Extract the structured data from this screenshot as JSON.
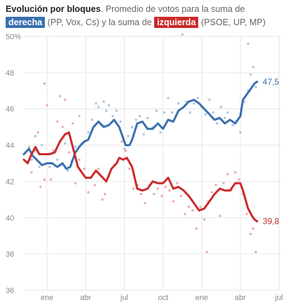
{
  "header": {
    "title": "Evolución por bloques",
    "sep": ". ",
    "text1": "Promedio de votos para la suma de ",
    "right_label": "derecha",
    "text2": " (PP, Vox, Cs) y la suma de ",
    "left_label": "izquierda",
    "text3": " (PSOE, UP, MP)"
  },
  "colors": {
    "right": "#3a70ae",
    "left": "#cc2a2a",
    "right_light": "#a9c3e0",
    "left_light": "#eba8a8",
    "grid": "#e6e6e6",
    "axis_text": "#888888"
  },
  "chart_data": {
    "type": "line",
    "title": "Evolución por bloques",
    "ylim": [
      36,
      50
    ],
    "y_ticks": [
      {
        "value": 50,
        "label": "50%"
      },
      {
        "value": 48,
        "label": "48"
      },
      {
        "value": 46,
        "label": "46"
      },
      {
        "value": 44,
        "label": "44"
      },
      {
        "value": 42,
        "label": "42"
      },
      {
        "value": 40,
        "label": "40"
      },
      {
        "value": 38,
        "label": "38"
      },
      {
        "value": 36,
        "label": "36"
      }
    ],
    "xlim": [
      0,
      1
    ],
    "x_ticks": [
      {
        "value": 0.09,
        "label": "ene"
      },
      {
        "value": 0.24,
        "label": "abr"
      },
      {
        "value": 0.39,
        "label": "jul"
      },
      {
        "value": 0.54,
        "label": "oct"
      },
      {
        "value": 0.69,
        "label": "ene"
      },
      {
        "value": 0.84,
        "label": "abr"
      },
      {
        "value": 0.99,
        "label": "jul"
      }
    ],
    "series": [
      {
        "name": "derecha",
        "color": "#3a70ae",
        "end_label": "47,5",
        "x": [
          0.0,
          0.02,
          0.035,
          0.05,
          0.07,
          0.09,
          0.11,
          0.13,
          0.15,
          0.165,
          0.18,
          0.2,
          0.22,
          0.235,
          0.25,
          0.27,
          0.29,
          0.31,
          0.33,
          0.35,
          0.37,
          0.38,
          0.395,
          0.41,
          0.42,
          0.44,
          0.46,
          0.48,
          0.5,
          0.52,
          0.54,
          0.56,
          0.58,
          0.6,
          0.62,
          0.64,
          0.66,
          0.68,
          0.7,
          0.72,
          0.74,
          0.76,
          0.78,
          0.8,
          0.82,
          0.84,
          0.85,
          0.87,
          0.885,
          0.895,
          0.905
        ],
        "y": [
          43.5,
          43.8,
          43.4,
          43.2,
          42.9,
          43.0,
          43.0,
          42.8,
          43.0,
          42.7,
          42.8,
          43.6,
          44.0,
          44.2,
          44.3,
          45.0,
          45.3,
          45.0,
          45.1,
          45.4,
          45.0,
          44.6,
          44.0,
          44.0,
          44.3,
          45.2,
          45.3,
          44.9,
          44.9,
          45.2,
          44.9,
          45.4,
          45.3,
          45.9,
          46.1,
          46.4,
          46.5,
          46.3,
          46.0,
          45.7,
          45.4,
          45.5,
          45.2,
          45.4,
          45.2,
          45.6,
          46.5,
          46.9,
          47.2,
          47.4,
          47.5
        ]
      },
      {
        "name": "izquierda",
        "color": "#cc2a2a",
        "end_label": "39,8",
        "x": [
          0.0,
          0.015,
          0.03,
          0.045,
          0.06,
          0.08,
          0.1,
          0.12,
          0.14,
          0.16,
          0.175,
          0.19,
          0.21,
          0.225,
          0.24,
          0.26,
          0.28,
          0.3,
          0.32,
          0.34,
          0.36,
          0.37,
          0.385,
          0.4,
          0.42,
          0.44,
          0.46,
          0.48,
          0.5,
          0.52,
          0.54,
          0.56,
          0.58,
          0.6,
          0.62,
          0.64,
          0.66,
          0.68,
          0.7,
          0.72,
          0.74,
          0.76,
          0.78,
          0.8,
          0.82,
          0.84,
          0.85,
          0.87,
          0.885,
          0.895,
          0.905
        ],
        "y": [
          43.2,
          43.0,
          43.5,
          43.9,
          43.5,
          43.5,
          43.5,
          43.6,
          44.2,
          44.6,
          44.7,
          43.9,
          42.8,
          42.5,
          42.2,
          42.2,
          42.6,
          42.3,
          42.0,
          42.7,
          43.0,
          43.3,
          43.2,
          43.3,
          42.8,
          41.6,
          41.5,
          41.6,
          42.0,
          41.9,
          41.9,
          42.2,
          41.6,
          41.7,
          41.5,
          41.2,
          40.8,
          40.4,
          40.5,
          40.9,
          41.3,
          41.6,
          41.5,
          41.5,
          41.9,
          41.9,
          41.5,
          40.5,
          40.1,
          39.9,
          39.8
        ]
      }
    ],
    "polls": [
      {
        "name": "derecha",
        "points": [
          [
            0.02,
            43.9
          ],
          [
            0.03,
            43.2
          ],
          [
            0.045,
            44.5
          ],
          [
            0.06,
            42.8
          ],
          [
            0.07,
            44.0
          ],
          [
            0.08,
            47.4
          ],
          [
            0.095,
            43.5
          ],
          [
            0.1,
            42.8
          ],
          [
            0.115,
            43.6
          ],
          [
            0.13,
            43.2
          ],
          [
            0.145,
            42.9
          ],
          [
            0.16,
            44.1
          ],
          [
            0.17,
            42.6
          ],
          [
            0.185,
            43.1
          ],
          [
            0.2,
            43.9
          ],
          [
            0.215,
            45.6
          ],
          [
            0.23,
            44.1
          ],
          [
            0.25,
            44.7
          ],
          [
            0.265,
            45.4
          ],
          [
            0.28,
            46.3
          ],
          [
            0.29,
            46.1
          ],
          [
            0.3,
            45.1
          ],
          [
            0.31,
            46.4
          ],
          [
            0.32,
            45.9
          ],
          [
            0.33,
            46.2
          ],
          [
            0.345,
            45.6
          ],
          [
            0.36,
            45.9
          ],
          [
            0.375,
            45.3
          ],
          [
            0.39,
            43.8
          ],
          [
            0.405,
            44.5
          ],
          [
            0.42,
            45.0
          ],
          [
            0.435,
            45.4
          ],
          [
            0.45,
            45.6
          ],
          [
            0.465,
            44.6
          ],
          [
            0.48,
            45.5
          ],
          [
            0.5,
            45.0
          ],
          [
            0.515,
            45.9
          ],
          [
            0.53,
            44.7
          ],
          [
            0.545,
            45.8
          ],
          [
            0.56,
            46.6
          ],
          [
            0.575,
            45.8
          ],
          [
            0.59,
            45.6
          ],
          [
            0.6,
            46.3
          ],
          [
            0.615,
            50.1
          ],
          [
            0.63,
            46.4
          ],
          [
            0.645,
            45.8
          ],
          [
            0.66,
            46.3
          ],
          [
            0.675,
            46.6
          ],
          [
            0.69,
            46.1
          ],
          [
            0.705,
            45.7
          ],
          [
            0.72,
            46.5
          ],
          [
            0.735,
            45.8
          ],
          [
            0.75,
            45.2
          ],
          [
            0.765,
            46.1
          ],
          [
            0.78,
            45.5
          ],
          [
            0.79,
            45.8
          ],
          [
            0.81,
            45.1
          ],
          [
            0.825,
            45.3
          ],
          [
            0.84,
            44.7
          ],
          [
            0.855,
            46.4
          ],
          [
            0.87,
            47.0
          ],
          [
            0.88,
            47.9
          ],
          [
            0.89,
            48.3
          ],
          [
            0.9,
            47.2
          ],
          [
            0.87,
            49.6
          ]
        ]
      },
      {
        "name": "izquierda",
        "points": [
          [
            0.015,
            43.1
          ],
          [
            0.03,
            42.5
          ],
          [
            0.045,
            43.7
          ],
          [
            0.055,
            44.7
          ],
          [
            0.065,
            41.7
          ],
          [
            0.08,
            42.1
          ],
          [
            0.09,
            46.2
          ],
          [
            0.105,
            42.1
          ],
          [
            0.115,
            43.7
          ],
          [
            0.13,
            45.3
          ],
          [
            0.14,
            46.7
          ],
          [
            0.15,
            45.0
          ],
          [
            0.16,
            46.5
          ],
          [
            0.175,
            43.6
          ],
          [
            0.19,
            45.2
          ],
          [
            0.2,
            41.9
          ],
          [
            0.215,
            43.2
          ],
          [
            0.235,
            42.7
          ],
          [
            0.25,
            41.4
          ],
          [
            0.26,
            42.2
          ],
          [
            0.275,
            41.8
          ],
          [
            0.29,
            42.7
          ],
          [
            0.305,
            41.0
          ],
          [
            0.315,
            41.3
          ],
          [
            0.33,
            42.3
          ],
          [
            0.35,
            42.9
          ],
          [
            0.365,
            43.1
          ],
          [
            0.38,
            44.2
          ],
          [
            0.395,
            43.7
          ],
          [
            0.41,
            42.7
          ],
          [
            0.425,
            41.6
          ],
          [
            0.44,
            41.8
          ],
          [
            0.455,
            41.3
          ],
          [
            0.47,
            40.8
          ],
          [
            0.49,
            41.8
          ],
          [
            0.505,
            41.3
          ],
          [
            0.52,
            41.6
          ],
          [
            0.535,
            41.2
          ],
          [
            0.55,
            41.7
          ],
          [
            0.565,
            41.5
          ],
          [
            0.58,
            40.9
          ],
          [
            0.595,
            41.9
          ],
          [
            0.61,
            41.2
          ],
          [
            0.625,
            40.2
          ],
          [
            0.64,
            40.6
          ],
          [
            0.655,
            40.4
          ],
          [
            0.67,
            39.4
          ],
          [
            0.685,
            40.6
          ],
          [
            0.7,
            39.9
          ],
          [
            0.715,
            40.9
          ],
          [
            0.73,
            41.4
          ],
          [
            0.745,
            41.8
          ],
          [
            0.76,
            40.1
          ],
          [
            0.775,
            41.9
          ],
          [
            0.79,
            42.4
          ],
          [
            0.805,
            41.5
          ],
          [
            0.82,
            42.5
          ],
          [
            0.835,
            42.1
          ],
          [
            0.85,
            41.3
          ],
          [
            0.865,
            40.2
          ],
          [
            0.88,
            39.1
          ],
          [
            0.89,
            39.4
          ],
          [
            0.9,
            38.1
          ],
          [
            0.71,
            38.1
          ]
        ]
      }
    ]
  }
}
